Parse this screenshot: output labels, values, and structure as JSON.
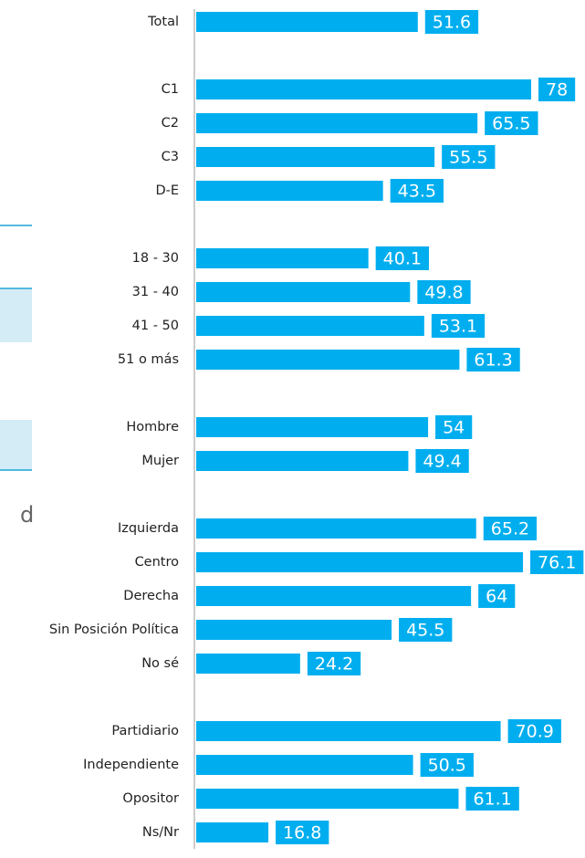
{
  "side_text": "d",
  "chart_data": {
    "type": "bar",
    "orientation": "horizontal",
    "color": "#00aeef",
    "categories": [
      "Total",
      null,
      "C1",
      "C2",
      "C3",
      "D-E",
      null,
      "18 - 30",
      "31 - 40",
      "41 - 50",
      "51 o más",
      null,
      "Hombre",
      "Mujer",
      null,
      "Izquierda",
      "Centro",
      "Derecha",
      "Sin Posición Política",
      "No sé",
      null,
      "Partidiario",
      "Independiente",
      "Opositor",
      "Ns/Nr"
    ],
    "values": [
      51.6,
      null,
      78,
      65.5,
      55.5,
      43.5,
      null,
      40.1,
      49.8,
      53.1,
      61.3,
      null,
      54,
      49.4,
      null,
      65.2,
      76.1,
      64,
      45.5,
      24.2,
      null,
      70.9,
      50.5,
      61.1,
      16.8
    ]
  }
}
